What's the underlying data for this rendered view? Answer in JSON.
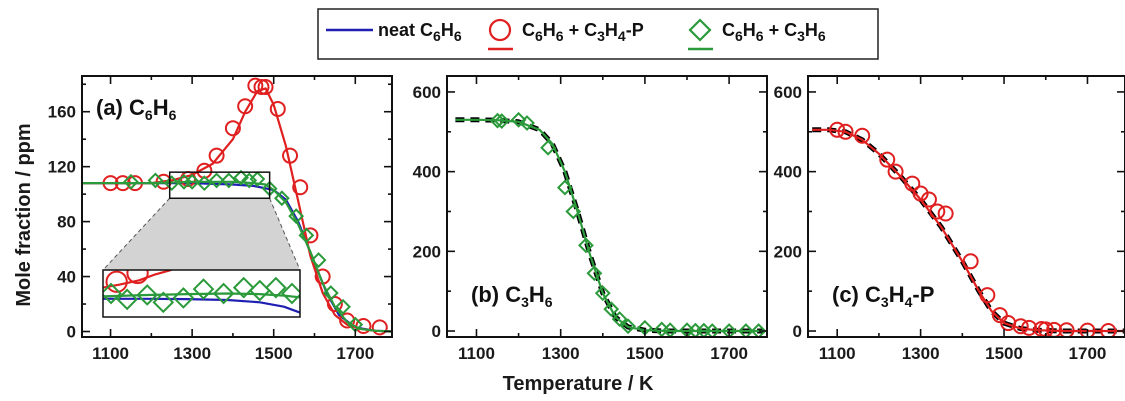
{
  "figure": {
    "x_axis_title": "Temperature / K",
    "y_axis_title": "Mole fraction / ppm"
  },
  "legend": [
    {
      "label": "neat C6H6",
      "text_parts": [
        [
          "neat C",
          false
        ],
        [
          "6",
          true
        ],
        [
          "H",
          false
        ],
        [
          "6",
          true
        ]
      ],
      "color": "#1f1fb4",
      "marker": "line"
    },
    {
      "label": "C6H6 + C3H4-P",
      "text_parts": [
        [
          "C",
          false
        ],
        [
          "6",
          true
        ],
        [
          "H",
          false
        ],
        [
          "6",
          true
        ],
        [
          " + C",
          false
        ],
        [
          "3",
          true
        ],
        [
          "H",
          false
        ],
        [
          "4",
          true
        ],
        [
          "-P",
          false
        ]
      ],
      "color": "#e02020",
      "marker": "circle"
    },
    {
      "label": "C6H6 + C3H6",
      "text_parts": [
        [
          "C",
          false
        ],
        [
          "6",
          true
        ],
        [
          "H",
          false
        ],
        [
          "6",
          true
        ],
        [
          " + C",
          false
        ],
        [
          "3",
          true
        ],
        [
          "H",
          false
        ],
        [
          "6",
          true
        ]
      ],
      "color": "#2a9a3a",
      "marker": "diamond"
    }
  ],
  "colors": {
    "blue": "#1f1fb4",
    "red": "#e02020",
    "green": "#2a9a3a",
    "black": "#000000",
    "inset_fill": "#d3d3d3"
  },
  "chart_data": [
    {
      "type": "line",
      "panel_label": "(a) C6H6",
      "panel_label_parts": [
        [
          "(a) C",
          false
        ],
        [
          "6",
          true
        ],
        [
          "H",
          false
        ],
        [
          "6",
          true
        ]
      ],
      "xlim": [
        1030,
        1790
      ],
      "ylim": [
        -4,
        186
      ],
      "xticks": [
        1100,
        1300,
        1500,
        1700
      ],
      "yticks": [
        0,
        40,
        80,
        120,
        160
      ],
      "grid": false,
      "series": [
        {
          "name": "neat C6H6",
          "kind": "line",
          "color": "#1f1fb4",
          "dashed": false,
          "x": [
            1030,
            1100,
            1200,
            1300,
            1400,
            1450,
            1500,
            1530,
            1560,
            1600,
            1630,
            1660,
            1700,
            1750,
            1790
          ],
          "y": [
            108,
            108,
            108,
            108,
            107,
            106,
            103,
            96,
            80,
            50,
            28,
            12,
            3,
            0.5,
            0
          ]
        },
        {
          "name": "C6H6 + C3H4-P",
          "kind": "line",
          "color": "#e02020",
          "dashed": false,
          "x": [
            1030,
            1100,
            1200,
            1250,
            1300,
            1350,
            1400,
            1430,
            1460,
            1480,
            1500,
            1530,
            1560,
            1590,
            1620,
            1650,
            1680,
            1710,
            1750,
            1790
          ],
          "y": [
            108,
            108,
            108,
            110,
            114,
            122,
            140,
            160,
            175,
            177,
            165,
            135,
            95,
            55,
            28,
            12,
            5,
            2,
            0.5,
            0
          ]
        },
        {
          "name": "C6H6 + C3H4-P",
          "kind": "circle",
          "color": "#e02020",
          "x": [
            1100,
            1130,
            1160,
            1230,
            1290,
            1330,
            1360,
            1400,
            1430,
            1455,
            1470,
            1480,
            1510,
            1540,
            1565,
            1590,
            1620,
            1650,
            1680,
            1720,
            1760
          ],
          "y": [
            108,
            108,
            108,
            109,
            111,
            117,
            128,
            148,
            164,
            179,
            178,
            178,
            162,
            128,
            105,
            70,
            40,
            20,
            8,
            4,
            3
          ]
        },
        {
          "name": "C6H6 + C3H6",
          "kind": "line",
          "color": "#2a9a3a",
          "dashed": false,
          "x": [
            1030,
            1100,
            1200,
            1300,
            1400,
            1450,
            1480,
            1500,
            1530,
            1560,
            1590,
            1620,
            1650,
            1680,
            1710,
            1750,
            1790
          ],
          "y": [
            108,
            108,
            108,
            109,
            109,
            108,
            107,
            103,
            94,
            78,
            58,
            35,
            18,
            7,
            2,
            0.5,
            0
          ]
        },
        {
          "name": "C6H6 + C3H6",
          "kind": "diamond",
          "color": "#2a9a3a",
          "x": [
            1150,
            1210,
            1250,
            1280,
            1300,
            1330,
            1360,
            1390,
            1420,
            1440,
            1460,
            1490,
            1520,
            1555,
            1580,
            1610,
            1640,
            1670,
            1700
          ],
          "y": [
            109,
            110,
            108,
            109,
            109,
            108,
            110,
            110,
            112,
            110,
            111,
            104,
            97,
            84,
            70,
            52,
            28,
            18,
            5
          ]
        }
      ],
      "inset_box": {
        "x": [
          1245,
          1490
        ],
        "y": [
          97,
          116
        ]
      },
      "inset": {
        "xlim": [
          1245,
          1490
        ],
        "ylim": [
          102,
          118
        ],
        "series": [
          {
            "name": "neat C6H6",
            "kind": "line",
            "color": "#1f1fb4",
            "x": [
              1245,
              1300,
              1350,
              1400,
              1440,
              1470,
              1490
            ],
            "y": [
              108.2,
              108.2,
              108.1,
              107.8,
              107,
              105.5,
              103.5
            ]
          },
          {
            "name": "C6H6 + C3H4-P",
            "kind": "line",
            "color": "#e02020",
            "x": [
              1245,
              1265,
              1290,
              1310,
              1330
            ],
            "y": [
              112,
              113,
              114.5,
              116.5,
              118
            ]
          },
          {
            "name": "C6H6 + C3H4-P",
            "kind": "circle",
            "color": "#e02020",
            "x": [
              1262,
              1288
            ],
            "y": [
              114,
              117
            ]
          },
          {
            "name": "C6H6 + C3H6",
            "kind": "line",
            "color": "#2a9a3a",
            "x": [
              1245,
              1300,
              1350,
              1400,
              1440,
              1470,
              1490
            ],
            "y": [
              109,
              109.5,
              109.8,
              110,
              109.8,
              109.3,
              108.7
            ]
          },
          {
            "name": "C6H6 + C3H6",
            "kind": "diamond",
            "color": "#2a9a3a",
            "x": [
              1255,
              1275,
              1300,
              1320,
              1345,
              1370,
              1395,
              1420,
              1440,
              1460,
              1480
            ],
            "y": [
              110,
              108,
              109.5,
              107,
              108.5,
              111.5,
              110,
              112,
              111,
              112,
              110
            ]
          }
        ]
      }
    },
    {
      "type": "line",
      "panel_label": "(b) C3H6",
      "panel_label_parts": [
        [
          "(b) C",
          false
        ],
        [
          "3",
          true
        ],
        [
          "H",
          false
        ],
        [
          "6",
          true
        ]
      ],
      "xlim": [
        1030,
        1790
      ],
      "ylim": [
        -15,
        640
      ],
      "xticks": [
        1100,
        1300,
        1500,
        1700
      ],
      "yticks": [
        0,
        200,
        400,
        600
      ],
      "grid": false,
      "series": [
        {
          "name": "neat",
          "kind": "line",
          "color": "#000000",
          "dashed": true,
          "x": [
            1050,
            1100,
            1150,
            1200,
            1250,
            1280,
            1310,
            1340,
            1370,
            1400,
            1430,
            1460,
            1500,
            1550,
            1600,
            1700,
            1780
          ],
          "y": [
            530,
            530,
            529,
            525,
            505,
            470,
            400,
            300,
            190,
            95,
            35,
            10,
            2,
            0,
            0,
            0,
            0
          ]
        },
        {
          "name": "C6H6 + C3H6",
          "kind": "line",
          "color": "#2a9a3a",
          "dashed": false,
          "x": [
            1050,
            1100,
            1150,
            1200,
            1250,
            1280,
            1310,
            1340,
            1370,
            1400,
            1430,
            1460,
            1500,
            1550,
            1600,
            1700,
            1780
          ],
          "y": [
            530,
            530,
            529,
            525,
            505,
            470,
            400,
            300,
            190,
            95,
            35,
            10,
            2,
            0,
            0,
            0,
            0
          ]
        },
        {
          "name": "C6H6 + C3H6",
          "kind": "diamond",
          "color": "#2a9a3a",
          "x": [
            1150,
            1160,
            1200,
            1220,
            1270,
            1310,
            1330,
            1360,
            1380,
            1400,
            1420,
            1440,
            1460,
            1500,
            1540,
            1560,
            1600,
            1620,
            1640,
            1660,
            1700,
            1740,
            1770
          ],
          "y": [
            528,
            527,
            530,
            522,
            460,
            360,
            300,
            215,
            145,
            95,
            55,
            30,
            12,
            8,
            4,
            2,
            2,
            1,
            1,
            0,
            0,
            0,
            0
          ]
        }
      ]
    },
    {
      "type": "line",
      "panel_label": "(c) C3H4-P",
      "panel_label_parts": [
        [
          "(c) C",
          false
        ],
        [
          "3",
          true
        ],
        [
          "H",
          false
        ],
        [
          "4",
          true
        ],
        [
          "-P",
          false
        ]
      ],
      "xlim": [
        1030,
        1790
      ],
      "ylim": [
        -15,
        640
      ],
      "xticks": [
        1100,
        1300,
        1500,
        1700
      ],
      "yticks": [
        0,
        200,
        400,
        600
      ],
      "grid": false,
      "series": [
        {
          "name": "neat",
          "kind": "line",
          "color": "#000000",
          "dashed": true,
          "x": [
            1040,
            1080,
            1120,
            1160,
            1200,
            1250,
            1300,
            1350,
            1400,
            1440,
            1470,
            1500,
            1540,
            1580,
            1640,
            1700,
            1790
          ],
          "y": [
            505,
            505,
            500,
            480,
            445,
            390,
            330,
            260,
            175,
            100,
            50,
            20,
            6,
            2,
            0,
            0,
            0
          ]
        },
        {
          "name": "C6H6 + C3H4-P",
          "kind": "line",
          "color": "#e02020",
          "dashed": false,
          "x": [
            1040,
            1080,
            1120,
            1160,
            1200,
            1250,
            1300,
            1350,
            1400,
            1440,
            1470,
            1500,
            1540,
            1580,
            1640,
            1700,
            1790
          ],
          "y": [
            505,
            505,
            500,
            480,
            445,
            390,
            330,
            260,
            175,
            100,
            50,
            20,
            6,
            2,
            0,
            0,
            0
          ]
        },
        {
          "name": "C6H6 + C3H4-P",
          "kind": "circle",
          "color": "#e02020",
          "x": [
            1100,
            1120,
            1160,
            1220,
            1240,
            1280,
            1300,
            1320,
            1340,
            1360,
            1420,
            1460,
            1490,
            1510,
            1540,
            1560,
            1590,
            1600,
            1620,
            1650,
            1700,
            1750
          ],
          "y": [
            505,
            500,
            490,
            430,
            400,
            370,
            345,
            330,
            300,
            295,
            175,
            90,
            40,
            20,
            12,
            8,
            5,
            4,
            3,
            2,
            1,
            0
          ]
        }
      ]
    }
  ]
}
